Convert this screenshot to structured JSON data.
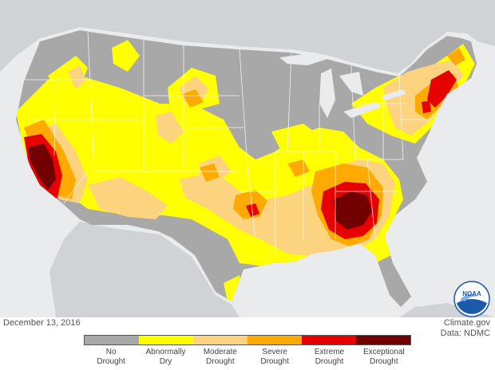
{
  "date_label": "December 13, 2016",
  "credit": {
    "line1": "Climate.gov",
    "line2": "Data: NDMC"
  },
  "logo": {
    "text": "NOAA"
  },
  "legend": [
    {
      "line1": "No",
      "line2": "Drought",
      "color": "#a8a8a8"
    },
    {
      "line1": "Abnormally",
      "line2": "Dry",
      "color": "#ffff00"
    },
    {
      "line1": "Moderate",
      "line2": "Drought",
      "color": "#fcd37f"
    },
    {
      "line1": "Severe",
      "line2": "Drought",
      "color": "#ffaa00"
    },
    {
      "line1": "Extreme",
      "line2": "Drought",
      "color": "#e60000"
    },
    {
      "line1": "Exceptional",
      "line2": "Drought",
      "color": "#730000"
    }
  ],
  "colors": {
    "land_outside": "#cfd3d6",
    "water": "#e9ebec",
    "state_lines": "#ffffff"
  }
}
